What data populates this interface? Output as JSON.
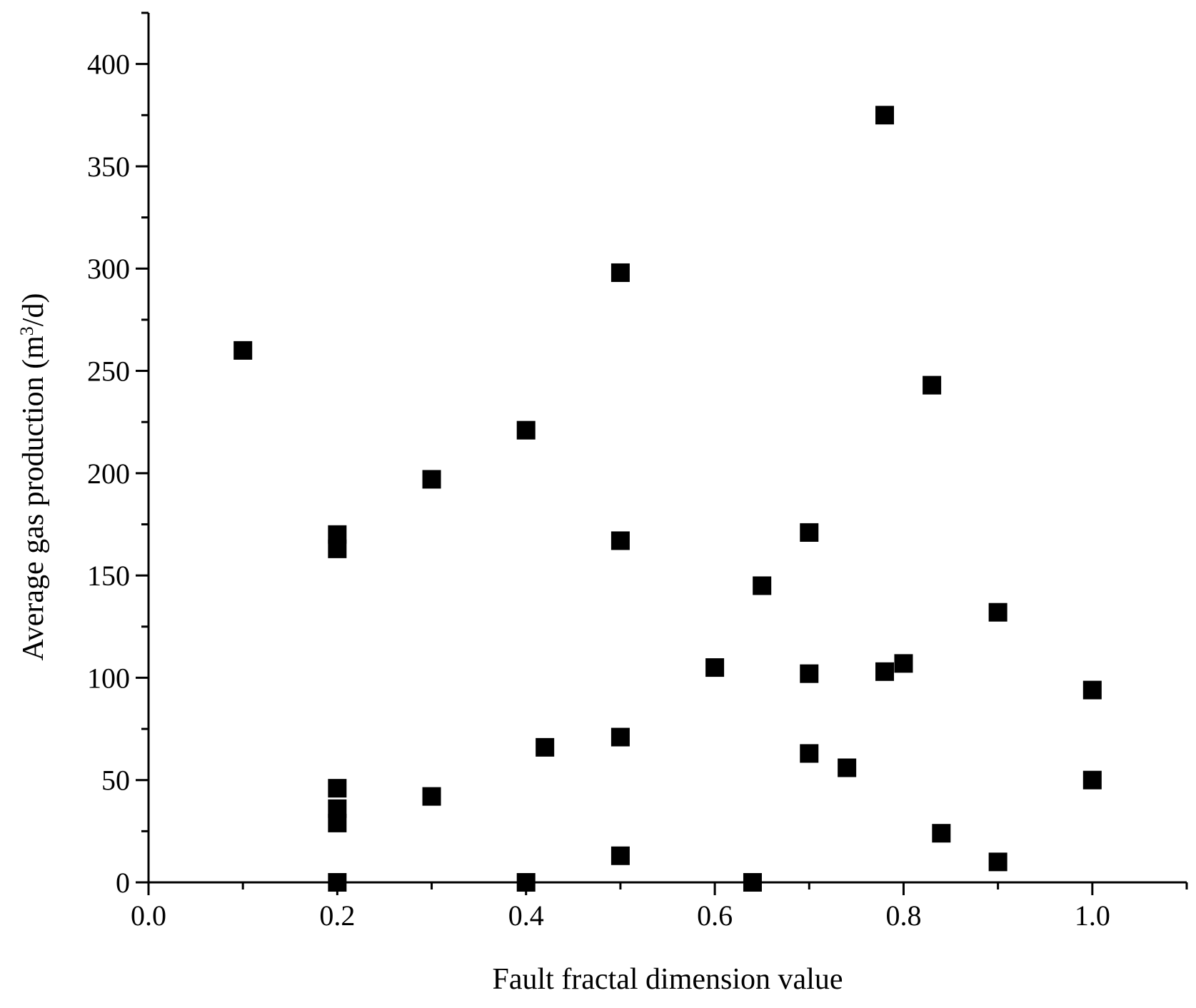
{
  "chart_data": {
    "type": "scatter",
    "title": "",
    "xlabel": "Fault fractal dimension value",
    "ylabel": {
      "prefix": "Average gas production (m",
      "superscript": "3",
      "suffix": "/d)"
    },
    "xlim": [
      0.0,
      1.1
    ],
    "ylim": [
      0,
      425
    ],
    "x_ticks": [
      "0.0",
      "0.2",
      "0.4",
      "0.6",
      "0.8",
      "1.0"
    ],
    "y_ticks": [
      "0",
      "50",
      "100",
      "150",
      "200",
      "250",
      "300",
      "350",
      "400"
    ],
    "grid": false,
    "legend": "none",
    "marker": "square",
    "marker_color": "#000000",
    "points": [
      {
        "x": 0.1,
        "y": 260
      },
      {
        "x": 0.2,
        "y": 170
      },
      {
        "x": 0.2,
        "y": 163
      },
      {
        "x": 0.2,
        "y": 46
      },
      {
        "x": 0.2,
        "y": 36
      },
      {
        "x": 0.2,
        "y": 29
      },
      {
        "x": 0.2,
        "y": 0
      },
      {
        "x": 0.3,
        "y": 197
      },
      {
        "x": 0.3,
        "y": 42
      },
      {
        "x": 0.4,
        "y": 221
      },
      {
        "x": 0.4,
        "y": 0
      },
      {
        "x": 0.42,
        "y": 66
      },
      {
        "x": 0.5,
        "y": 298
      },
      {
        "x": 0.5,
        "y": 167
      },
      {
        "x": 0.5,
        "y": 71
      },
      {
        "x": 0.5,
        "y": 13
      },
      {
        "x": 0.6,
        "y": 105
      },
      {
        "x": 0.64,
        "y": 0
      },
      {
        "x": 0.65,
        "y": 145
      },
      {
        "x": 0.7,
        "y": 171
      },
      {
        "x": 0.7,
        "y": 102
      },
      {
        "x": 0.7,
        "y": 63
      },
      {
        "x": 0.74,
        "y": 56
      },
      {
        "x": 0.78,
        "y": 375
      },
      {
        "x": 0.78,
        "y": 103
      },
      {
        "x": 0.8,
        "y": 107
      },
      {
        "x": 0.83,
        "y": 243
      },
      {
        "x": 0.84,
        "y": 24
      },
      {
        "x": 0.9,
        "y": 132
      },
      {
        "x": 0.9,
        "y": 10
      },
      {
        "x": 1.0,
        "y": 94
      },
      {
        "x": 1.0,
        "y": 50
      }
    ]
  }
}
